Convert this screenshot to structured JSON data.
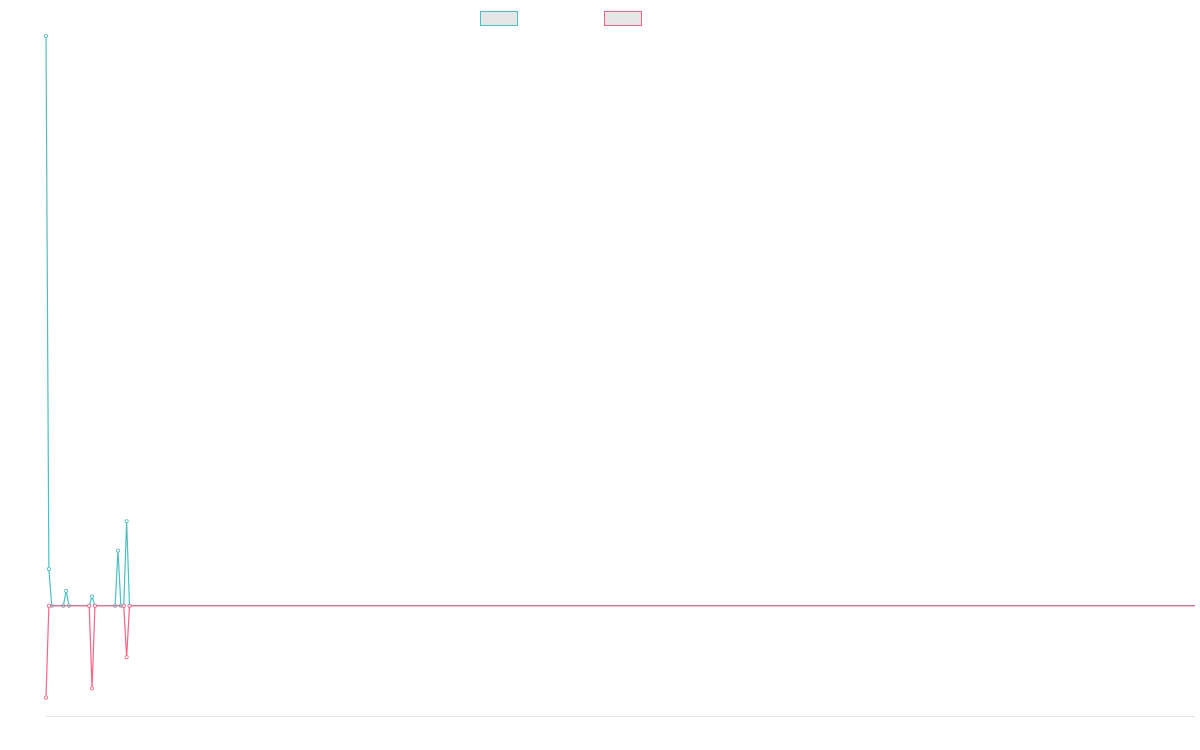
{
  "chart_data": {
    "type": "line",
    "title": "",
    "xlabel": "",
    "ylabel": "",
    "grid": false,
    "legend_position": "top-center",
    "x_count": 400,
    "ylim": [
      -6,
      31
    ],
    "series": [
      {
        "name": "",
        "color": "#4bc0c0",
        "fill": "#e6e6e6",
        "sparse_values": [
          [
            0,
            31
          ],
          [
            1,
            2
          ],
          [
            7,
            0.8
          ],
          [
            16,
            0.5
          ],
          [
            25,
            3
          ],
          [
            28,
            4.6
          ]
        ]
      },
      {
        "name": "",
        "color": "#ff6384",
        "fill": "#e6e6e6",
        "sparse_values": [
          [
            0,
            -5
          ],
          [
            16,
            -4.5
          ],
          [
            28,
            -2.8
          ]
        ]
      }
    ]
  }
}
